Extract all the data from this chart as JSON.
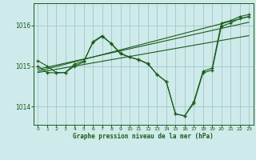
{
  "title": "Graphe pression niveau de la mer (hPa)",
  "bg_color": "#ceeaea",
  "grid_color": "#aacccc",
  "line_color": "#1a5c1a",
  "xlim": [
    -0.5,
    23.5
  ],
  "ylim": [
    1013.55,
    1016.55
  ],
  "yticks": [
    1014,
    1015,
    1016
  ],
  "xticks": [
    0,
    1,
    2,
    3,
    4,
    5,
    6,
    7,
    8,
    9,
    10,
    11,
    12,
    13,
    14,
    15,
    16,
    17,
    18,
    19,
    20,
    21,
    22,
    23
  ],
  "curve1_x": [
    0,
    1,
    2,
    3,
    4,
    5,
    6,
    7,
    8,
    9,
    10,
    11,
    12,
    13,
    14,
    15,
    16,
    17,
    18,
    19,
    20,
    21,
    22,
    23
  ],
  "curve1_y": [
    1015.13,
    1015.0,
    1014.84,
    1014.84,
    1015.05,
    1015.12,
    1015.58,
    1015.73,
    1015.56,
    1015.32,
    1015.22,
    1015.16,
    1015.06,
    1014.79,
    1014.61,
    1013.82,
    1013.77,
    1014.12,
    1014.87,
    1014.95,
    1016.06,
    1016.12,
    1016.22,
    1016.27
  ],
  "trend1_x": [
    0,
    23
  ],
  "trend1_y": [
    1014.87,
    1016.22
  ],
  "trend2_x": [
    0,
    23
  ],
  "trend2_y": [
    1014.84,
    1015.75
  ],
  "trend3_x": [
    0,
    23
  ],
  "trend3_y": [
    1014.92,
    1016.08
  ],
  "curve2_x": [
    0,
    1,
    2,
    3,
    4,
    5,
    6,
    7,
    8,
    9,
    10,
    11,
    12,
    13,
    14,
    15,
    16,
    17,
    18,
    19,
    20,
    21,
    22,
    23
  ],
  "curve2_y": [
    1015.0,
    1014.84,
    1014.83,
    1014.84,
    1015.0,
    1015.1,
    1015.6,
    1015.75,
    1015.55,
    1015.3,
    1015.22,
    1015.15,
    1015.05,
    1014.79,
    1014.62,
    1013.82,
    1013.77,
    1014.08,
    1014.83,
    1014.9,
    1015.98,
    1016.06,
    1016.17,
    1016.22
  ]
}
